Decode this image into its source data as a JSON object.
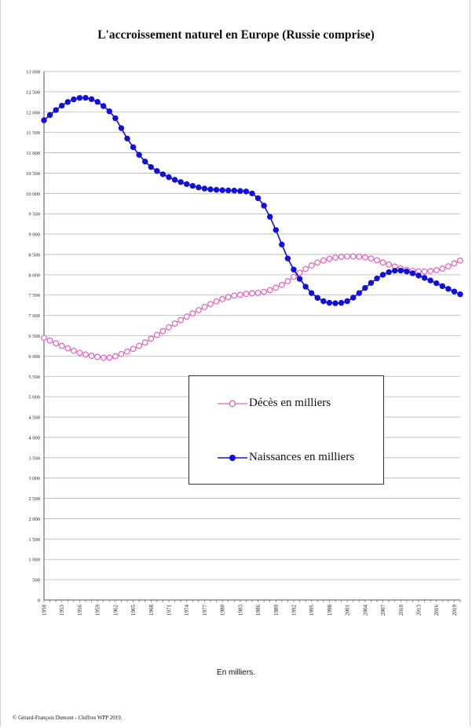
{
  "chart_data": {
    "type": "line",
    "title": "L'accroissement naturel en Europe (Russie comprise)",
    "unit_note": "En milliers.",
    "credit": "© Gérard-François Dumont - Chiffres WPP 2019.",
    "ylim": [
      0,
      13000
    ],
    "y_step": 500,
    "y_tick_labels": [
      "0",
      "500",
      "1 000",
      "1 500",
      "2 000",
      "2 500",
      "3 000",
      "3 500",
      "4 000",
      "4 500",
      "5 000",
      "5 500",
      "6 000",
      "6 500",
      "7 000",
      "7 500",
      "8 000",
      "8 500",
      "9 000",
      "9 500",
      "10 000",
      "10 500",
      "11 000",
      "11 500",
      "12 000",
      "12 500",
      "13 000"
    ],
    "x_tick_labels": [
      "1950",
      "1953",
      "1956",
      "1959",
      "1962",
      "1965",
      "1968",
      "1971",
      "1974",
      "1977",
      "1980",
      "1983",
      "1986",
      "1989",
      "1992",
      "1995",
      "1998",
      "2001",
      "2004",
      "2007",
      "2010",
      "2013",
      "2016",
      "2019"
    ],
    "x_start": 1950,
    "x_end": 2020,
    "grid": true,
    "legend_position": "center-right",
    "series": [
      {
        "name": "Décès en milliers",
        "color": "#e060c0",
        "marker": "open-circle",
        "anchors": [
          [
            1950,
            6450
          ],
          [
            1953,
            6250
          ],
          [
            1956,
            6080
          ],
          [
            1959,
            5980
          ],
          [
            1961,
            5960
          ],
          [
            1963,
            6050
          ],
          [
            1966,
            6250
          ],
          [
            1969,
            6520
          ],
          [
            1972,
            6800
          ],
          [
            1975,
            7050
          ],
          [
            1978,
            7280
          ],
          [
            1981,
            7450
          ],
          [
            1984,
            7530
          ],
          [
            1987,
            7580
          ],
          [
            1990,
            7750
          ],
          [
            1993,
            8050
          ],
          [
            1996,
            8300
          ],
          [
            1999,
            8420
          ],
          [
            2002,
            8450
          ],
          [
            2005,
            8400
          ],
          [
            2008,
            8250
          ],
          [
            2011,
            8120
          ],
          [
            2014,
            8080
          ],
          [
            2017,
            8150
          ],
          [
            2020,
            8350
          ]
        ]
      },
      {
        "name": "Naissances en milliers",
        "color": "#1010d8",
        "marker": "filled-circle",
        "anchors": [
          [
            1950,
            11800
          ],
          [
            1952,
            12050
          ],
          [
            1954,
            12250
          ],
          [
            1956,
            12350
          ],
          [
            1958,
            12320
          ],
          [
            1960,
            12150
          ],
          [
            1962,
            11850
          ],
          [
            1964,
            11350
          ],
          [
            1966,
            10950
          ],
          [
            1968,
            10650
          ],
          [
            1971,
            10400
          ],
          [
            1974,
            10230
          ],
          [
            1977,
            10120
          ],
          [
            1980,
            10080
          ],
          [
            1983,
            10060
          ],
          [
            1985,
            10000
          ],
          [
            1987,
            9700
          ],
          [
            1989,
            9100
          ],
          [
            1991,
            8400
          ],
          [
            1993,
            7900
          ],
          [
            1995,
            7550
          ],
          [
            1997,
            7350
          ],
          [
            1999,
            7300
          ],
          [
            2001,
            7350
          ],
          [
            2003,
            7550
          ],
          [
            2005,
            7800
          ],
          [
            2007,
            8000
          ],
          [
            2009,
            8100
          ],
          [
            2011,
            8080
          ],
          [
            2013,
            7980
          ],
          [
            2015,
            7860
          ],
          [
            2017,
            7720
          ],
          [
            2020,
            7520
          ]
        ]
      }
    ]
  }
}
